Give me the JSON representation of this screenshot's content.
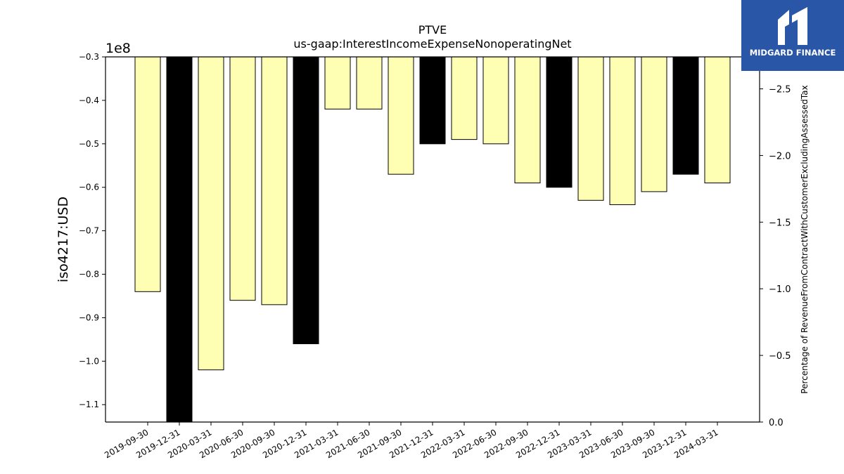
{
  "chart_data": {
    "type": "bar",
    "title": "PTVE",
    "subtitle": "us-gaap:InterestIncomeExpenseNonoperatingNet",
    "ylabel": "iso4217:USD",
    "y2label": "Percentage of RevenueFromContractWithCustomerExcludingAssessedTax",
    "y_offset_label": "1e8",
    "ylim": [
      -1.14,
      -0.3
    ],
    "y_ticks": [
      -0.3,
      -0.4,
      -0.5,
      -0.6,
      -0.7,
      -0.8,
      -0.9,
      -1.0,
      -1.1
    ],
    "y_tick_labels": [
      "−0.3",
      "−0.4",
      "−0.5",
      "−0.6",
      "−0.7",
      "−0.8",
      "−0.9",
      "−1.0",
      "−1.1"
    ],
    "y2lim": [
      0.0,
      -2.74
    ],
    "y2_ticks": [
      -2.5,
      -2.0,
      -1.5,
      -1.0,
      -0.5,
      0.0
    ],
    "y2_tick_labels": [
      "−2.5",
      "−2.0",
      "−1.5",
      "−1.0",
      "−0.5",
      "0.0"
    ],
    "categories": [
      "2019-09-30",
      "2019-12-31",
      "2020-03-31",
      "2020-06-30",
      "2020-09-30",
      "2020-12-31",
      "2021-03-31",
      "2021-06-30",
      "2021-09-30",
      "2021-12-31",
      "2022-03-31",
      "2022-06-30",
      "2022-09-30",
      "2022-12-31",
      "2023-03-31",
      "2023-06-30",
      "2023-09-30",
      "2023-12-31",
      "2024-03-31"
    ],
    "values": [
      -0.84,
      -1.14,
      -1.02,
      -0.86,
      -0.87,
      -0.96,
      -0.42,
      -0.42,
      -0.57,
      -0.5,
      -0.49,
      -0.5,
      -0.59,
      -0.6,
      -0.63,
      -0.64,
      -0.61,
      -0.57,
      -0.59
    ],
    "fiscal_year_end": [
      false,
      true,
      false,
      false,
      false,
      true,
      false,
      false,
      false,
      true,
      false,
      false,
      false,
      true,
      false,
      false,
      false,
      true,
      false
    ],
    "colors": {
      "quarter": "#ffffb3",
      "year_end": "#000000",
      "edge": "#000000"
    },
    "grid": false
  },
  "brand": {
    "name": "MIDGARD FINANCE",
    "logo": "midgard-logo-icon",
    "color": "#2a56a8"
  }
}
